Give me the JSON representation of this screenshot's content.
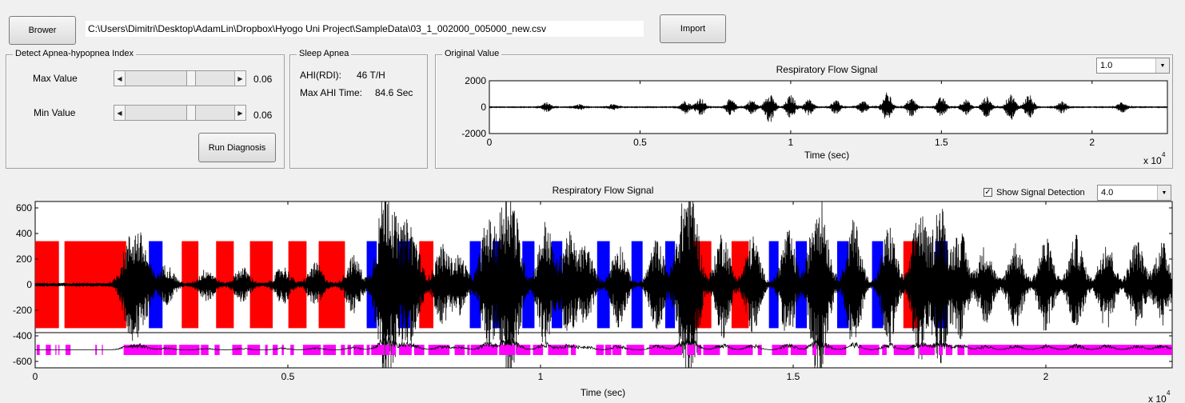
{
  "toolbar": {
    "browse_label": "Brower",
    "file_path": "C:\\Users\\Dimitri\\Desktop\\AdamLin\\Dropbox\\Hyogo Uni Project\\SampleData\\03_1_002000_005000_new.csv",
    "import_label": "Import"
  },
  "detect_panel": {
    "title": "Detect Apnea-hypopnea Index",
    "max_label": "Max Value",
    "max_value": "0.06",
    "max_slider_fraction": 0.6,
    "min_label": "Min Value",
    "min_value": "0.06",
    "min_slider_fraction": 0.6,
    "run_label": "Run Diagnosis"
  },
  "sleep_panel": {
    "title": "Sleep Apnea",
    "ahi_label": "AHI(RDI):",
    "ahi_value": "46 T/H",
    "max_time_label": "Max AHI Time:",
    "max_time_value": "84.6 Sec"
  },
  "original_panel": {
    "title": "Original Value",
    "scale_select": "1.0"
  },
  "bottom_controls": {
    "show_detection_label": "Show Signal Detection",
    "show_detection_checked": true,
    "scale_select": "4.0"
  },
  "colors": {
    "apnea": "#ff0000",
    "hypopnea": "#0000ff",
    "detection": "#ff00ff",
    "signal": "#000000"
  },
  "chart_data": [
    {
      "type": "line",
      "title": "Respiratory Flow Signal",
      "xlabel": "Time (sec)",
      "ylabel": "",
      "x_exponent_label": "x 10",
      "x_exponent": "4",
      "xlim": [
        0,
        22500
      ],
      "ylim": [
        -2000,
        2000
      ],
      "x_ticks": [
        0,
        5000,
        10000,
        15000,
        20000
      ],
      "x_tick_labels": [
        "0",
        "0.5",
        "1",
        "1.5",
        "2"
      ],
      "y_ticks": [
        2000,
        0,
        -2000
      ],
      "y_tick_labels": [
        "2000",
        "0",
        "-2000"
      ],
      "bursts": [
        {
          "x": 1900,
          "amp": 350
        },
        {
          "x": 3000,
          "amp": 200
        },
        {
          "x": 4100,
          "amp": 220
        },
        {
          "x": 6500,
          "amp": 500
        },
        {
          "x": 7000,
          "amp": 700
        },
        {
          "x": 8000,
          "amp": 600
        },
        {
          "x": 8700,
          "amp": 550
        },
        {
          "x": 9300,
          "amp": 1200
        },
        {
          "x": 10000,
          "amp": 900
        },
        {
          "x": 10600,
          "amp": 600
        },
        {
          "x": 11500,
          "amp": 500
        },
        {
          "x": 12400,
          "amp": 450
        },
        {
          "x": 13200,
          "amp": 1100
        },
        {
          "x": 14000,
          "amp": 700
        },
        {
          "x": 15000,
          "amp": 750
        },
        {
          "x": 15800,
          "amp": 600
        },
        {
          "x": 16500,
          "amp": 800
        },
        {
          "x": 17300,
          "amp": 1000
        },
        {
          "x": 17900,
          "amp": 950
        },
        {
          "x": 19000,
          "amp": 450
        },
        {
          "x": 21000,
          "amp": 400
        }
      ]
    },
    {
      "type": "line",
      "title": "Respiratory Flow Signal",
      "xlabel": "Time (sec)",
      "ylabel": "",
      "x_exponent_label": "x 10",
      "x_exponent": "4",
      "xlim": [
        0,
        22500
      ],
      "ylim": [
        -650,
        650
      ],
      "x_ticks": [
        0,
        5000,
        10000,
        15000,
        20000
      ],
      "x_tick_labels": [
        "0",
        "0.5",
        "1",
        "1.5",
        "2"
      ],
      "y_ticks": [
        600,
        400,
        200,
        0,
        -200,
        -400,
        -600
      ],
      "y_tick_labels": [
        "600",
        "400",
        "200",
        "0",
        "-200",
        "-400",
        "-600"
      ],
      "event_range": [
        -340,
        340
      ],
      "events": [
        {
          "start": 0,
          "end": 470,
          "kind": "apnea"
        },
        {
          "start": 580,
          "end": 1800,
          "kind": "apnea"
        },
        {
          "start": 2250,
          "end": 2520,
          "kind": "hypopnea"
        },
        {
          "start": 2900,
          "end": 3230,
          "kind": "apnea"
        },
        {
          "start": 3580,
          "end": 3930,
          "kind": "apnea"
        },
        {
          "start": 4250,
          "end": 4700,
          "kind": "apnea"
        },
        {
          "start": 5010,
          "end": 5370,
          "kind": "apnea"
        },
        {
          "start": 5610,
          "end": 6130,
          "kind": "apnea"
        },
        {
          "start": 6560,
          "end": 6760,
          "kind": "hypopnea"
        },
        {
          "start": 7180,
          "end": 7420,
          "kind": "hypopnea"
        },
        {
          "start": 7600,
          "end": 7880,
          "kind": "apnea"
        },
        {
          "start": 8600,
          "end": 8820,
          "kind": "hypopnea"
        },
        {
          "start": 9050,
          "end": 9220,
          "kind": "hypopnea"
        },
        {
          "start": 9640,
          "end": 9880,
          "kind": "hypopnea"
        },
        {
          "start": 10220,
          "end": 10430,
          "kind": "hypopnea"
        },
        {
          "start": 11120,
          "end": 11370,
          "kind": "hypopnea"
        },
        {
          "start": 11800,
          "end": 12020,
          "kind": "hypopnea"
        },
        {
          "start": 12470,
          "end": 12660,
          "kind": "hypopnea"
        },
        {
          "start": 12470,
          "end": 12480,
          "kind": "hypopnea"
        },
        {
          "start": 12470,
          "end": 12480,
          "kind": "hypopnea"
        },
        {
          "start": 13020,
          "end": 13380,
          "kind": "apnea"
        },
        {
          "start": 13180,
          "end": 13180,
          "kind": "apnea"
        },
        {
          "start": 13220,
          "end": 13240,
          "kind": "apnea"
        },
        {
          "start": 13250,
          "end": 13260,
          "kind": "apnea"
        },
        {
          "start": 13780,
          "end": 14120,
          "kind": "apnea"
        },
        {
          "start": 14520,
          "end": 14710,
          "kind": "hypopnea"
        },
        {
          "start": 15050,
          "end": 15270,
          "kind": "hypopnea"
        },
        {
          "start": 15870,
          "end": 16100,
          "kind": "hypopnea"
        },
        {
          "start": 16560,
          "end": 16780,
          "kind": "hypopnea"
        },
        {
          "start": 17180,
          "end": 17470,
          "kind": "apnea"
        },
        {
          "start": 17810,
          "end": 18050,
          "kind": "hypopnea"
        }
      ],
      "detection_level": -510,
      "detection_height": 80,
      "detections": [
        [
          30,
          90
        ],
        [
          210,
          310
        ],
        [
          400,
          420
        ],
        [
          460,
          480
        ],
        [
          600,
          700
        ],
        [
          1190,
          1220
        ],
        [
          1320,
          1340
        ],
        [
          1750,
          2450
        ],
        [
          2450,
          2510
        ],
        [
          2540,
          2800
        ],
        [
          2850,
          3250
        ],
        [
          3280,
          3430
        ],
        [
          3550,
          3650
        ],
        [
          3900,
          4090
        ],
        [
          4200,
          4450
        ],
        [
          4550,
          4600
        ],
        [
          4700,
          4800
        ],
        [
          4880,
          4920
        ],
        [
          5050,
          5120
        ],
        [
          5300,
          5650
        ],
        [
          5700,
          5950
        ],
        [
          6050,
          6130
        ],
        [
          6180,
          6250
        ],
        [
          6300,
          6500
        ],
        [
          6560,
          6620
        ],
        [
          6650,
          6900
        ],
        [
          6920,
          7020
        ],
        [
          7050,
          7140
        ],
        [
          7200,
          7450
        ],
        [
          7500,
          7700
        ],
        [
          7780,
          8200
        ],
        [
          8300,
          8500
        ],
        [
          8550,
          8600
        ],
        [
          8620,
          9150
        ],
        [
          9180,
          9500
        ],
        [
          9520,
          9800
        ],
        [
          9850,
          10050
        ],
        [
          10150,
          10550
        ],
        [
          10600,
          10700
        ],
        [
          11100,
          11250
        ],
        [
          11280,
          11400
        ],
        [
          11420,
          11600
        ],
        [
          11700,
          12050
        ],
        [
          12150,
          12800
        ],
        [
          12900,
          13050
        ],
        [
          13100,
          13180
        ],
        [
          13220,
          13550
        ],
        [
          13700,
          14200
        ],
        [
          14300,
          14380
        ],
        [
          14580,
          14900
        ],
        [
          14950,
          15270
        ],
        [
          15380,
          15460
        ],
        [
          15620,
          16050
        ],
        [
          16300,
          16700
        ],
        [
          16760,
          16850
        ],
        [
          16990,
          17400
        ],
        [
          17500,
          17800
        ],
        [
          17880,
          17960
        ],
        [
          18020,
          18150
        ],
        [
          18250,
          18390
        ],
        [
          18450,
          22500
        ]
      ],
      "bursts": [
        {
          "x": 1820,
          "amp": 240
        },
        {
          "x": 2000,
          "amp": 260
        },
        {
          "x": 2160,
          "amp": 200
        },
        {
          "x": 2600,
          "amp": 150
        },
        {
          "x": 3400,
          "amp": 120
        },
        {
          "x": 4100,
          "amp": 130
        },
        {
          "x": 4900,
          "amp": 140
        },
        {
          "x": 5550,
          "amp": 160
        },
        {
          "x": 6300,
          "amp": 220
        },
        {
          "x": 6860,
          "amp": 400
        },
        {
          "x": 7000,
          "amp": 600
        },
        {
          "x": 7300,
          "amp": 350
        },
        {
          "x": 7500,
          "amp": 320
        },
        {
          "x": 8050,
          "amp": 300
        },
        {
          "x": 8400,
          "amp": 220
        },
        {
          "x": 8950,
          "amp": 500
        },
        {
          "x": 9300,
          "amp": 650
        },
        {
          "x": 9500,
          "amp": 420
        },
        {
          "x": 10100,
          "amp": 500
        },
        {
          "x": 10550,
          "amp": 400
        },
        {
          "x": 10900,
          "amp": 300
        },
        {
          "x": 11550,
          "amp": 320
        },
        {
          "x": 12300,
          "amp": 350
        },
        {
          "x": 12800,
          "amp": 450
        },
        {
          "x": 13000,
          "amp": 650
        },
        {
          "x": 13600,
          "amp": 420
        },
        {
          "x": 14200,
          "amp": 380
        },
        {
          "x": 14900,
          "amp": 420
        },
        {
          "x": 15450,
          "amp": 520
        },
        {
          "x": 15600,
          "amp": 380
        },
        {
          "x": 16200,
          "amp": 500
        },
        {
          "x": 16900,
          "amp": 460
        },
        {
          "x": 17500,
          "amp": 600
        },
        {
          "x": 17900,
          "amp": 650
        },
        {
          "x": 18300,
          "amp": 420
        },
        {
          "x": 18800,
          "amp": 300
        },
        {
          "x": 19400,
          "amp": 330
        },
        {
          "x": 20000,
          "amp": 360
        },
        {
          "x": 20600,
          "amp": 380
        },
        {
          "x": 21200,
          "amp": 360
        },
        {
          "x": 21800,
          "amp": 340
        },
        {
          "x": 22300,
          "amp": 330
        }
      ]
    }
  ]
}
